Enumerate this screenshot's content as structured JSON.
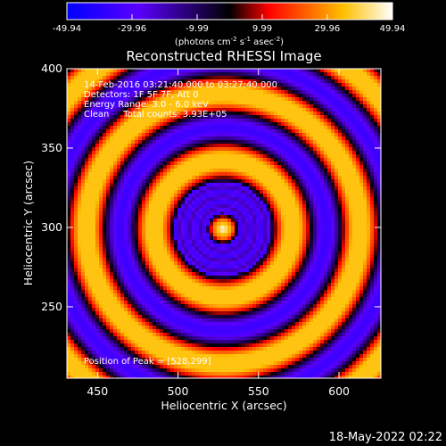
{
  "chart_data": {
    "type": "heatmap",
    "title": "Reconstructed RHESSI Image",
    "xlabel": "Heliocentric X (arcsec)",
    "ylabel": "Heliocentric Y (arcsec)",
    "xlim": [
      431,
      626
    ],
    "ylim": [
      205,
      400
    ],
    "xticks": [
      450,
      500,
      550,
      600
    ],
    "yticks": [
      250,
      300,
      350,
      400
    ],
    "x_tick_labels": [
      "450",
      "500",
      "550",
      "600"
    ],
    "y_tick_labels": [
      "250",
      "300",
      "350",
      "400"
    ],
    "colorbar": {
      "min": -49.94,
      "max": 49.94,
      "ticks": [
        -49.94,
        -29.96,
        -9.99,
        9.99,
        29.96,
        49.94
      ],
      "tick_labels": [
        "-49.94",
        "-29.96",
        "-9.99",
        "9.99",
        "29.96",
        "49.94"
      ],
      "label_main": "(photons cm",
      "label_exp1": "-2",
      "label_mid": " s",
      "label_exp2": "-1",
      "label_tail": " asec",
      "label_exp3": "-2",
      "label_end": ")",
      "colors": [
        "#0000ff",
        "#5a00ff",
        "#000000",
        "#ff0000",
        "#ffc000",
        "#ffffff"
      ]
    },
    "info_lines": [
      "14-Feb-2016 03:21:40.000 to 03:27:40.000",
      "Detectors: 1F 5F 7F, Att 0",
      "Energy Range: 3.0 - 6.0 keV",
      "Clean     Total counts: 3.93E+05"
    ],
    "peak_text": "Position of Peak = [528,299]",
    "peak": {
      "x": 528,
      "y": 299
    },
    "ring_period_arcsec": 42
  },
  "footer": {
    "timestamp": "18-May-2022 02:22"
  }
}
